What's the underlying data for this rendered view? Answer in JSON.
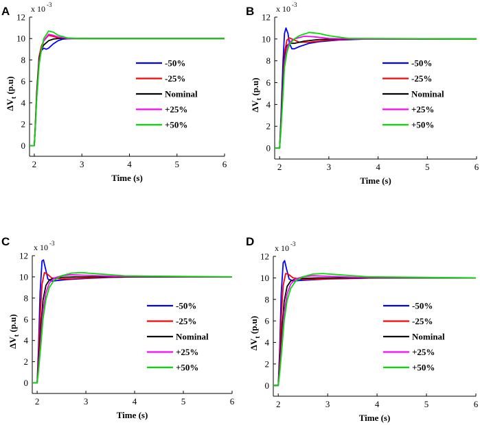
{
  "chart_data": [
    {
      "type": "line",
      "panel": "A",
      "xlabel": "Time (s)",
      "ylabel_main": "ΔV",
      "ylabel_sub": "t",
      "ylabel_unit": " (p.u)",
      "y_multiplier_base": "x 10",
      "y_multiplier_exp": "-3",
      "xlim": [
        1.9,
        6
      ],
      "ylim": [
        -1,
        12
      ],
      "xticks": [
        2,
        3,
        4,
        5,
        6
      ],
      "yticks": [
        0,
        2,
        4,
        6,
        8,
        10,
        12
      ],
      "legend_position": "center-right",
      "series": [
        {
          "name": "-50%",
          "color": "#0000ff",
          "x": [
            1.9,
            2.0,
            2.02,
            2.05,
            2.1,
            2.15,
            2.2,
            2.25,
            2.3,
            2.4,
            2.5,
            2.6,
            2.8,
            3.0,
            6.0
          ],
          "y": [
            0,
            0,
            1.5,
            4.5,
            7.8,
            8.9,
            9.1,
            9.0,
            9.1,
            9.5,
            9.8,
            9.95,
            10.0,
            10.0,
            10.0
          ]
        },
        {
          "name": "-25%",
          "color": "#ff0000",
          "x": [
            1.9,
            2.0,
            2.02,
            2.05,
            2.1,
            2.15,
            2.2,
            2.3,
            2.4,
            2.5,
            2.7,
            3.0,
            6.0
          ],
          "y": [
            0,
            0,
            1.8,
            5.0,
            8.3,
            9.3,
            9.8,
            10.3,
            10.2,
            10.05,
            10.0,
            10.0,
            10.0
          ]
        },
        {
          "name": "Nominal",
          "color": "#000000",
          "x": [
            1.9,
            2.0,
            2.02,
            2.05,
            2.1,
            2.15,
            2.2,
            2.3,
            2.4,
            2.5,
            2.7,
            3.0,
            6.0
          ],
          "y": [
            0,
            0,
            1.6,
            4.8,
            8.1,
            9.0,
            9.4,
            9.8,
            9.95,
            10.0,
            10.0,
            10.0,
            10.0
          ]
        },
        {
          "name": "+25%",
          "color": "#ff00ff",
          "x": [
            1.9,
            2.0,
            2.02,
            2.05,
            2.1,
            2.15,
            2.2,
            2.3,
            2.4,
            2.5,
            2.7,
            3.0,
            6.0
          ],
          "y": [
            0,
            0,
            1.5,
            4.5,
            7.8,
            9.0,
            9.8,
            10.4,
            10.3,
            10.15,
            10.0,
            10.0,
            10.0
          ]
        },
        {
          "name": "+50%",
          "color": "#00dd00",
          "x": [
            1.9,
            2.0,
            2.02,
            2.05,
            2.1,
            2.15,
            2.2,
            2.3,
            2.4,
            2.5,
            2.7,
            3.0,
            6.0
          ],
          "y": [
            0,
            0,
            1.4,
            4.3,
            7.5,
            9.0,
            10.0,
            10.7,
            10.6,
            10.3,
            10.05,
            10.0,
            10.0
          ]
        }
      ]
    },
    {
      "type": "line",
      "panel": "B",
      "xlabel": "Time (s)",
      "ylabel_main": "ΔV",
      "ylabel_sub": "t",
      "ylabel_unit": " (p.u)",
      "y_multiplier_base": "x 10",
      "y_multiplier_exp": "-3",
      "xlim": [
        1.9,
        6
      ],
      "ylim": [
        -1,
        12
      ],
      "xticks": [
        2,
        3,
        4,
        5,
        6
      ],
      "yticks": [
        0,
        2,
        4,
        6,
        8,
        10,
        12
      ],
      "legend_position": "center-right",
      "series": [
        {
          "name": "-50%",
          "color": "#0000ff",
          "x": [
            1.9,
            2.0,
            2.03,
            2.07,
            2.1,
            2.13,
            2.17,
            2.2,
            2.25,
            2.3,
            2.4,
            2.6,
            2.8,
            3.2,
            3.8,
            6.0
          ],
          "y": [
            0,
            0,
            3.0,
            8.0,
            10.5,
            11.0,
            10.5,
            9.6,
            9.1,
            9.1,
            9.3,
            9.6,
            9.75,
            9.9,
            10.0,
            10.0
          ]
        },
        {
          "name": "-25%",
          "color": "#ff0000",
          "x": [
            1.9,
            2.0,
            2.03,
            2.07,
            2.1,
            2.15,
            2.2,
            2.3,
            2.4,
            2.6,
            3.0,
            3.5,
            6.0
          ],
          "y": [
            0,
            0,
            2.5,
            6.5,
            8.8,
            9.9,
            10.1,
            9.9,
            9.7,
            9.7,
            9.9,
            10.0,
            10.0
          ]
        },
        {
          "name": "Nominal",
          "color": "#000000",
          "x": [
            1.9,
            2.0,
            2.03,
            2.07,
            2.1,
            2.15,
            2.2,
            2.3,
            2.5,
            2.8,
            3.2,
            6.0
          ],
          "y": [
            0,
            0,
            2.2,
            6.0,
            8.3,
            9.4,
            9.6,
            9.6,
            9.8,
            9.95,
            10.0,
            10.0
          ]
        },
        {
          "name": "+25%",
          "color": "#ff00ff",
          "x": [
            1.9,
            2.0,
            2.03,
            2.07,
            2.1,
            2.15,
            2.2,
            2.3,
            2.5,
            2.7,
            3.0,
            3.5,
            6.0
          ],
          "y": [
            0,
            0,
            2.0,
            5.5,
            7.9,
            9.2,
            9.7,
            10.0,
            10.25,
            10.2,
            10.05,
            10.0,
            10.0
          ]
        },
        {
          "name": "+50%",
          "color": "#00dd00",
          "x": [
            1.9,
            2.0,
            2.03,
            2.07,
            2.1,
            2.15,
            2.2,
            2.3,
            2.4,
            2.6,
            2.8,
            3.0,
            3.4,
            6.0
          ],
          "y": [
            0,
            0,
            1.8,
            5.0,
            7.4,
            8.8,
            9.5,
            10.0,
            10.3,
            10.6,
            10.5,
            10.3,
            10.05,
            10.0
          ]
        }
      ]
    },
    {
      "type": "line",
      "panel": "C",
      "xlabel": "Time (s)",
      "ylabel_main": "ΔV",
      "ylabel_sub": "t",
      "ylabel_unit": " (p.u)",
      "y_multiplier_base": "x 10",
      "y_multiplier_exp": "-3",
      "xlim": [
        1.9,
        6
      ],
      "ylim": [
        -1,
        12
      ],
      "xticks": [
        2,
        3,
        4,
        5,
        6
      ],
      "yticks": [
        0,
        2,
        4,
        6,
        8,
        10,
        12
      ],
      "legend_position": "center-right",
      "series": [
        {
          "name": "-50%",
          "color": "#0000ff",
          "x": [
            1.9,
            2.0,
            2.03,
            2.06,
            2.1,
            2.13,
            2.17,
            2.22,
            2.3,
            2.4,
            2.6,
            3.0,
            3.5,
            4.0,
            6.0
          ],
          "y": [
            0,
            0,
            3.5,
            8.5,
            11.5,
            11.6,
            10.8,
            9.8,
            9.6,
            9.65,
            9.75,
            9.85,
            9.95,
            10.0,
            10.0
          ]
        },
        {
          "name": "-25%",
          "color": "#ff0000",
          "x": [
            1.9,
            2.0,
            2.03,
            2.07,
            2.1,
            2.15,
            2.2,
            2.3,
            2.5,
            2.8,
            3.3,
            4.0,
            6.0
          ],
          "y": [
            0,
            0,
            2.5,
            7.0,
            9.3,
            10.4,
            10.3,
            9.9,
            9.8,
            9.85,
            9.95,
            10.0,
            10.0
          ]
        },
        {
          "name": "Nominal",
          "color": "#000000",
          "x": [
            1.9,
            2.0,
            2.03,
            2.08,
            2.12,
            2.18,
            2.25,
            2.35,
            2.5,
            2.8,
            3.2,
            6.0
          ],
          "y": [
            0,
            0,
            1.8,
            5.5,
            7.8,
            9.2,
            9.7,
            9.9,
            9.95,
            10.0,
            10.0,
            10.0
          ]
        },
        {
          "name": "+25%",
          "color": "#ff00ff",
          "x": [
            1.9,
            2.0,
            2.03,
            2.08,
            2.12,
            2.18,
            2.25,
            2.35,
            2.5,
            2.7,
            3.0,
            3.6,
            6.0
          ],
          "y": [
            0,
            0,
            1.5,
            4.5,
            6.8,
            8.5,
            9.4,
            9.9,
            10.1,
            10.2,
            10.15,
            10.05,
            10.0
          ]
        },
        {
          "name": "+50%",
          "color": "#00dd00",
          "x": [
            1.9,
            2.0,
            2.03,
            2.08,
            2.12,
            2.18,
            2.25,
            2.35,
            2.5,
            2.7,
            2.9,
            3.2,
            3.8,
            6.0
          ],
          "y": [
            0,
            0,
            1.2,
            3.8,
            6.0,
            7.9,
            9.0,
            9.7,
            10.1,
            10.35,
            10.4,
            10.3,
            10.1,
            10.0
          ]
        }
      ]
    },
    {
      "type": "line",
      "panel": "D",
      "xlabel": "Time (s)",
      "ylabel_main": "ΔV",
      "ylabel_sub": "t",
      "ylabel_unit": " (p.u)",
      "y_multiplier_base": "x 10",
      "y_multiplier_exp": "-3",
      "xlim": [
        1.9,
        6
      ],
      "ylim": [
        -1,
        12
      ],
      "xticks": [
        2,
        3,
        4,
        5,
        6
      ],
      "yticks": [
        0,
        2,
        4,
        6,
        8,
        10,
        12
      ],
      "legend_position": "center-right",
      "series": [
        {
          "name": "-50%",
          "color": "#0000ff",
          "x": [
            1.9,
            2.0,
            2.03,
            2.06,
            2.1,
            2.13,
            2.17,
            2.22,
            2.3,
            2.4,
            2.6,
            3.0,
            3.5,
            4.0,
            6.0
          ],
          "y": [
            0,
            0,
            3.5,
            8.5,
            11.4,
            11.6,
            10.8,
            9.9,
            9.7,
            9.75,
            9.8,
            9.9,
            9.95,
            10.0,
            10.0
          ]
        },
        {
          "name": "-25%",
          "color": "#ff0000",
          "x": [
            1.9,
            2.0,
            2.03,
            2.07,
            2.1,
            2.15,
            2.2,
            2.3,
            2.5,
            2.8,
            3.3,
            4.0,
            6.0
          ],
          "y": [
            0,
            0,
            2.5,
            7.0,
            9.3,
            10.4,
            10.35,
            10.0,
            9.85,
            9.9,
            9.95,
            10.0,
            10.0
          ]
        },
        {
          "name": "Nominal",
          "color": "#000000",
          "x": [
            1.9,
            2.0,
            2.03,
            2.08,
            2.12,
            2.18,
            2.25,
            2.35,
            2.5,
            2.8,
            3.2,
            6.0
          ],
          "y": [
            0,
            0,
            1.8,
            5.5,
            7.8,
            9.2,
            9.7,
            9.9,
            9.95,
            10.0,
            10.0,
            10.0
          ]
        },
        {
          "name": "+25%",
          "color": "#ff00ff",
          "x": [
            1.9,
            2.0,
            2.03,
            2.08,
            2.12,
            2.18,
            2.25,
            2.35,
            2.5,
            2.7,
            3.0,
            3.6,
            6.0
          ],
          "y": [
            0,
            0,
            1.5,
            4.5,
            6.8,
            8.5,
            9.4,
            9.9,
            10.1,
            10.2,
            10.15,
            10.05,
            10.0
          ]
        },
        {
          "name": "+50%",
          "color": "#00dd00",
          "x": [
            1.9,
            2.0,
            2.03,
            2.08,
            2.12,
            2.18,
            2.25,
            2.35,
            2.5,
            2.7,
            2.9,
            3.2,
            3.8,
            6.0
          ],
          "y": [
            0,
            0,
            1.2,
            3.8,
            6.0,
            7.9,
            9.0,
            9.7,
            10.1,
            10.35,
            10.4,
            10.3,
            10.1,
            10.0
          ]
        }
      ]
    }
  ]
}
